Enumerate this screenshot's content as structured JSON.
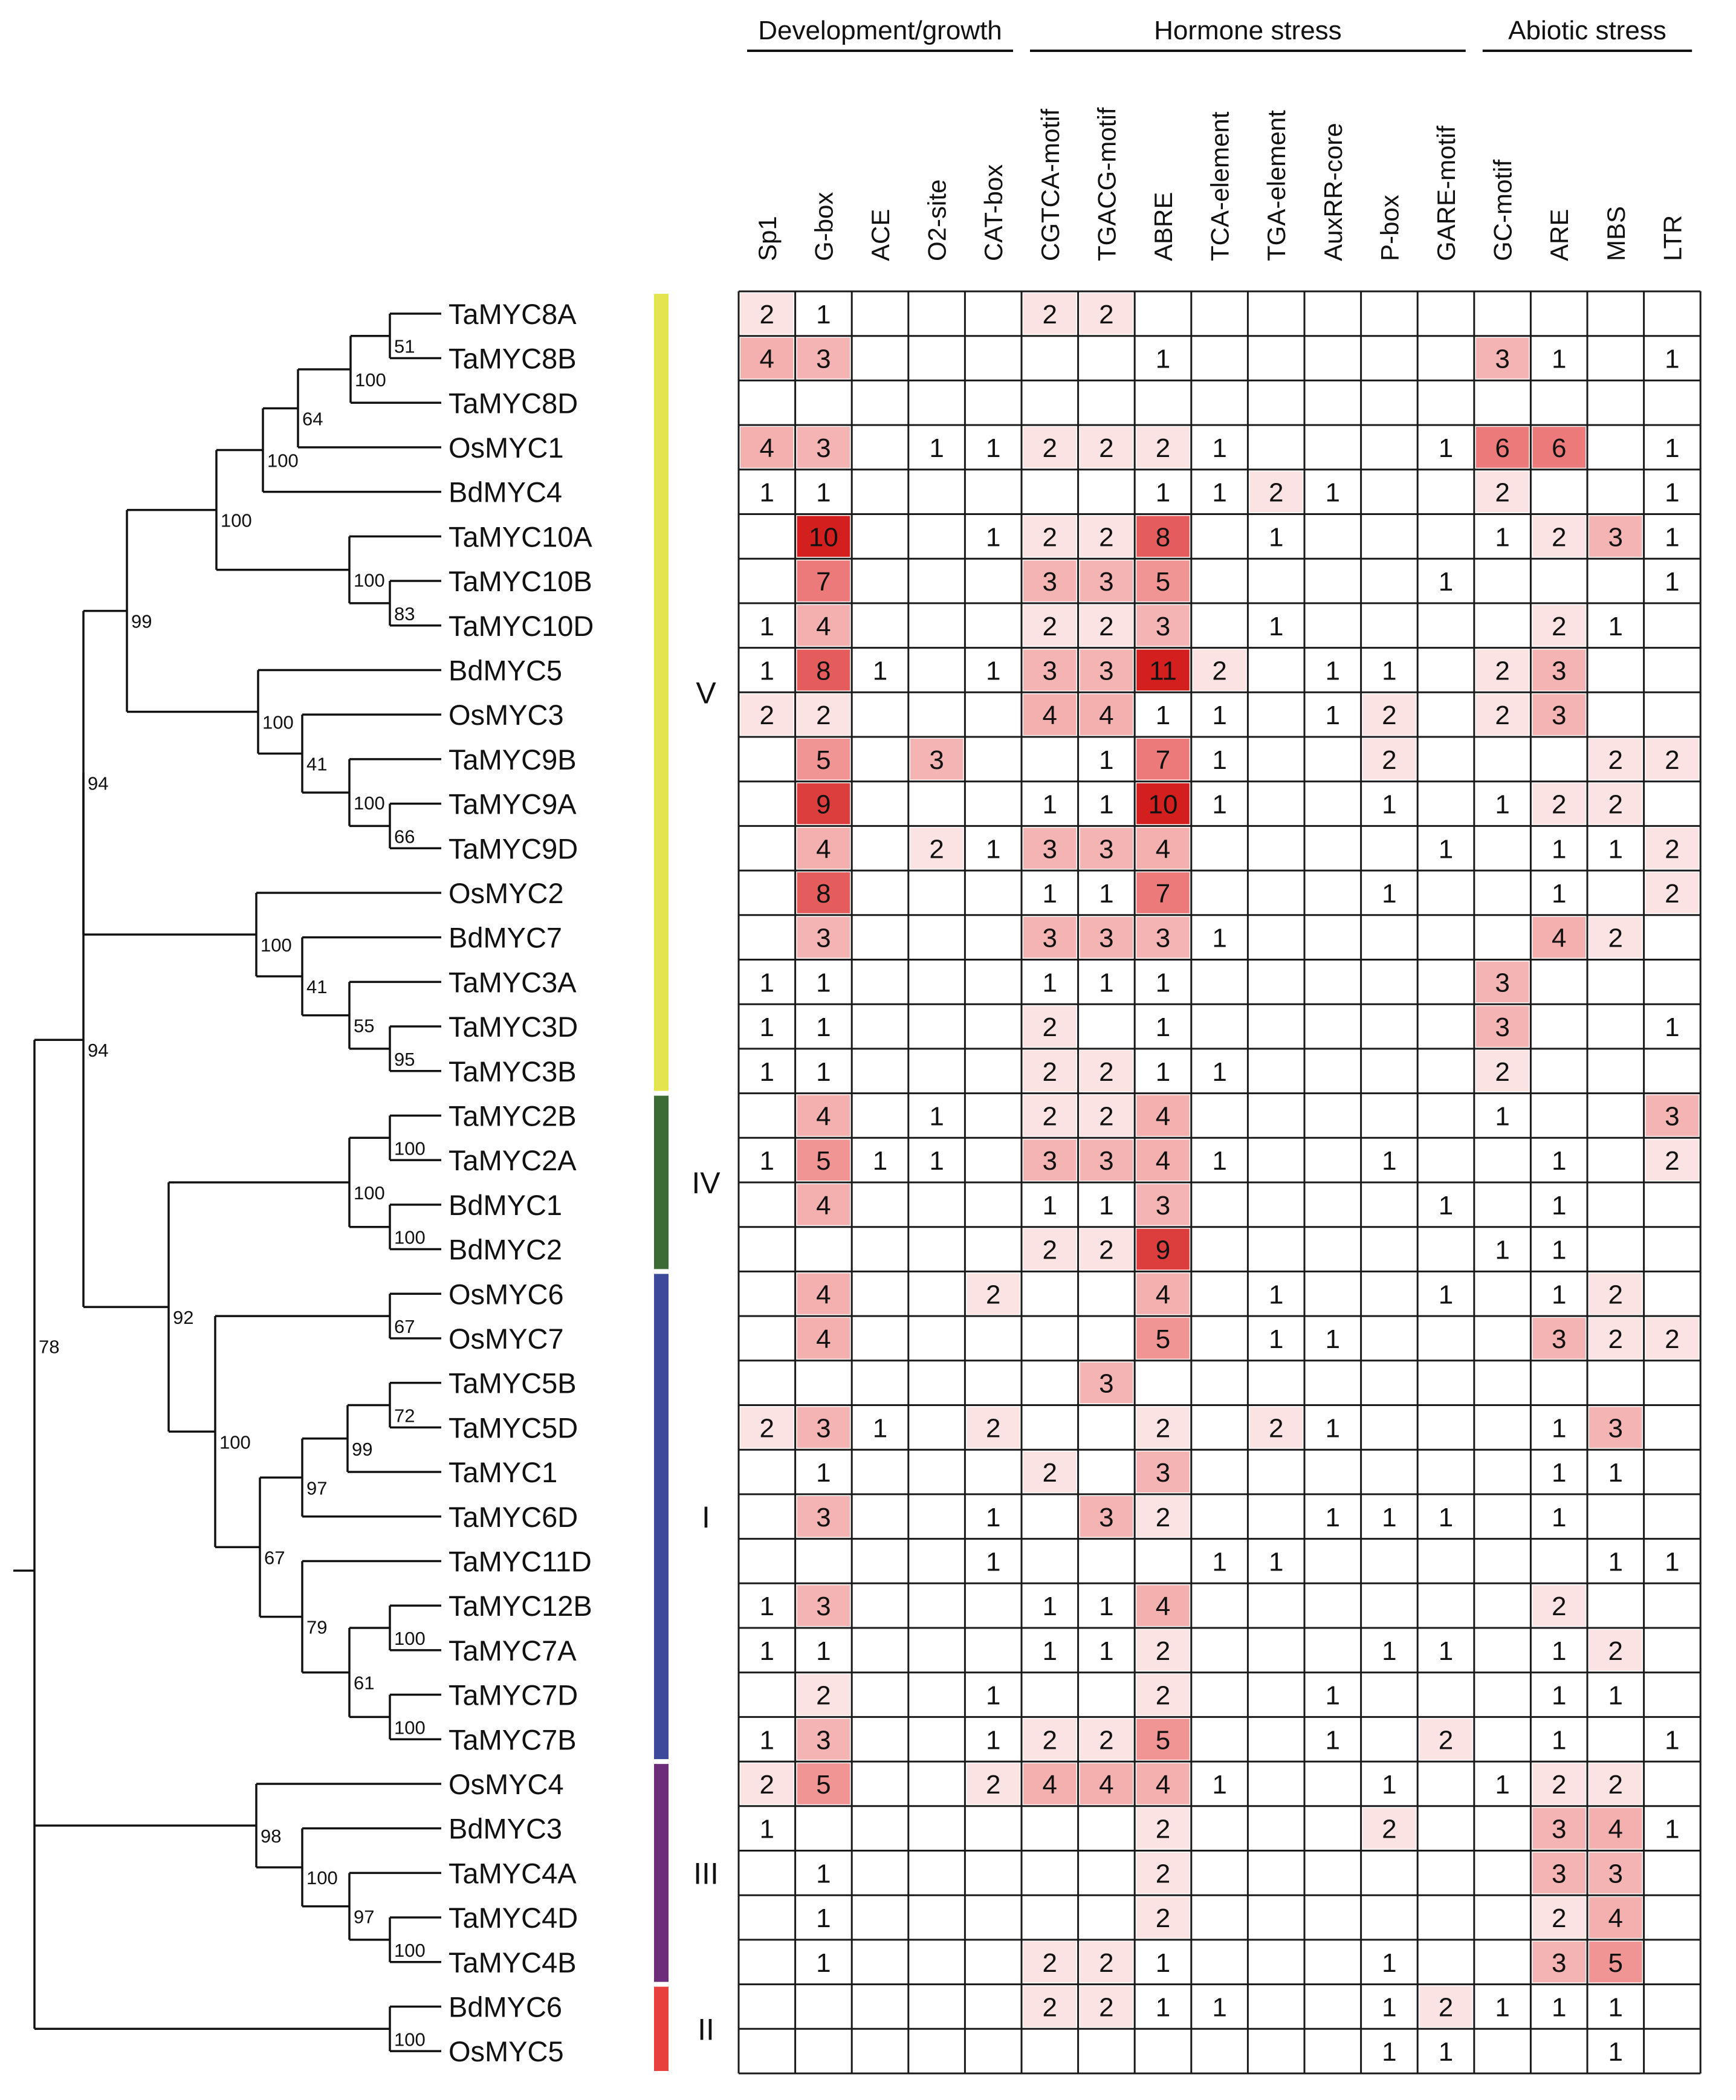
{
  "chart_data": {
    "type": "heatmap",
    "title": "",
    "categories_header": [
      {
        "label": "Development/growth",
        "from": 0,
        "to": 4
      },
      {
        "label": "Hormone stress",
        "from": 5,
        "to": 12
      },
      {
        "label": "Abiotic stress",
        "from": 13,
        "to": 16
      }
    ],
    "columns": [
      "Sp1",
      "G-box",
      "ACE",
      "O2-site",
      "CAT-box",
      "CGTCA-motif",
      "TGACG-motif",
      "ABRE",
      "TCA-element",
      "TGA-element",
      "AuxRR-core",
      "P-box",
      "GARE-motif",
      "GC-motif",
      "ARE",
      "MBS",
      "LTR"
    ],
    "rows": [
      "TaMYC8A",
      "TaMYC8B",
      "TaMYC8D",
      "OsMYC1",
      "BdMYC4",
      "TaMYC10A",
      "TaMYC10B",
      "TaMYC10D",
      "BdMYC5",
      "OsMYC3",
      "TaMYC9B",
      "TaMYC9A",
      "TaMYC9D",
      "OsMYC2",
      "BdMYC7",
      "TaMYC3A",
      "TaMYC3D",
      "TaMYC3B",
      "TaMYC2B",
      "TaMYC2A",
      "BdMYC1",
      "BdMYC2",
      "OsMYC6",
      "OsMYC7",
      "TaMYC5B",
      "TaMYC5D",
      "TaMYC1",
      "TaMYC6D",
      "TaMYC11D",
      "TaMYC12B",
      "TaMYC7A",
      "TaMYC7D",
      "TaMYC7B",
      "OsMYC4",
      "BdMYC3",
      "TaMYC4A",
      "TaMYC4D",
      "TaMYC4B",
      "BdMYC6",
      "OsMYC5"
    ],
    "values": [
      [
        2,
        1,
        0,
        0,
        0,
        2,
        2,
        0,
        0,
        0,
        0,
        0,
        0,
        0,
        0,
        0,
        0
      ],
      [
        4,
        3,
        0,
        0,
        0,
        0,
        0,
        1,
        0,
        0,
        0,
        0,
        0,
        3,
        1,
        0,
        1
      ],
      [
        0,
        0,
        0,
        0,
        0,
        0,
        0,
        0,
        0,
        0,
        0,
        0,
        0,
        0,
        0,
        0,
        0
      ],
      [
        4,
        3,
        0,
        1,
        1,
        2,
        2,
        2,
        1,
        0,
        0,
        0,
        1,
        6,
        6,
        0,
        1
      ],
      [
        1,
        1,
        0,
        0,
        0,
        0,
        0,
        1,
        1,
        2,
        1,
        0,
        0,
        2,
        0,
        0,
        1
      ],
      [
        0,
        10,
        0,
        0,
        1,
        2,
        2,
        8,
        0,
        1,
        0,
        0,
        0,
        1,
        2,
        3,
        1
      ],
      [
        0,
        7,
        0,
        0,
        0,
        3,
        3,
        5,
        0,
        0,
        0,
        0,
        1,
        0,
        0,
        0,
        1
      ],
      [
        1,
        4,
        0,
        0,
        0,
        2,
        2,
        3,
        0,
        1,
        0,
        0,
        0,
        0,
        2,
        1,
        0
      ],
      [
        1,
        8,
        1,
        0,
        1,
        3,
        3,
        11,
        2,
        0,
        1,
        1,
        0,
        2,
        3,
        0,
        0
      ],
      [
        2,
        2,
        0,
        0,
        0,
        4,
        4,
        1,
        1,
        0,
        1,
        2,
        0,
        2,
        3,
        0,
        0
      ],
      [
        0,
        5,
        0,
        3,
        0,
        0,
        1,
        7,
        1,
        0,
        0,
        2,
        0,
        0,
        0,
        2,
        2
      ],
      [
        0,
        9,
        0,
        0,
        0,
        1,
        1,
        10,
        1,
        0,
        0,
        1,
        0,
        1,
        2,
        2,
        0
      ],
      [
        0,
        4,
        0,
        2,
        1,
        3,
        3,
        4,
        0,
        0,
        0,
        0,
        1,
        0,
        1,
        1,
        2
      ],
      [
        0,
        8,
        0,
        0,
        0,
        1,
        1,
        7,
        0,
        0,
        0,
        1,
        0,
        0,
        1,
        0,
        2
      ],
      [
        0,
        3,
        0,
        0,
        0,
        3,
        3,
        3,
        1,
        0,
        0,
        0,
        0,
        0,
        4,
        2,
        0
      ],
      [
        1,
        1,
        0,
        0,
        0,
        1,
        1,
        1,
        0,
        0,
        0,
        0,
        0,
        3,
        0,
        0,
        0
      ],
      [
        1,
        1,
        0,
        0,
        0,
        2,
        0,
        1,
        0,
        0,
        0,
        0,
        0,
        3,
        0,
        0,
        1
      ],
      [
        1,
        1,
        0,
        0,
        0,
        2,
        2,
        1,
        1,
        0,
        0,
        0,
        0,
        2,
        0,
        0,
        0
      ],
      [
        0,
        4,
        0,
        1,
        0,
        2,
        2,
        4,
        0,
        0,
        0,
        0,
        0,
        1,
        0,
        0,
        3
      ],
      [
        1,
        5,
        1,
        1,
        0,
        3,
        3,
        4,
        1,
        0,
        0,
        1,
        0,
        0,
        1,
        0,
        2
      ],
      [
        0,
        4,
        0,
        0,
        0,
        1,
        1,
        3,
        0,
        0,
        0,
        0,
        1,
        0,
        1,
        0,
        0
      ],
      [
        0,
        0,
        0,
        0,
        0,
        2,
        2,
        9,
        0,
        0,
        0,
        0,
        0,
        1,
        1,
        0,
        0
      ],
      [
        0,
        4,
        0,
        0,
        2,
        0,
        0,
        4,
        0,
        1,
        0,
        0,
        1,
        0,
        1,
        2,
        0
      ],
      [
        0,
        4,
        0,
        0,
        0,
        0,
        0,
        5,
        0,
        1,
        1,
        0,
        0,
        0,
        3,
        2,
        2
      ],
      [
        0,
        0,
        0,
        0,
        0,
        0,
        3,
        0,
        0,
        0,
        0,
        0,
        0,
        0,
        0,
        0,
        0
      ],
      [
        2,
        3,
        1,
        0,
        2,
        0,
        0,
        2,
        0,
        2,
        1,
        0,
        0,
        0,
        1,
        3,
        0
      ],
      [
        0,
        1,
        0,
        0,
        0,
        2,
        0,
        3,
        0,
        0,
        0,
        0,
        0,
        0,
        1,
        1,
        0
      ],
      [
        0,
        3,
        0,
        0,
        1,
        0,
        3,
        2,
        0,
        0,
        1,
        1,
        1,
        0,
        1,
        0,
        0
      ],
      [
        0,
        0,
        0,
        0,
        1,
        0,
        0,
        0,
        1,
        1,
        0,
        0,
        0,
        0,
        0,
        1,
        1
      ],
      [
        1,
        3,
        0,
        0,
        0,
        1,
        1,
        4,
        0,
        0,
        0,
        0,
        0,
        0,
        2,
        0,
        0
      ],
      [
        1,
        1,
        0,
        0,
        0,
        1,
        1,
        2,
        0,
        0,
        0,
        1,
        1,
        0,
        1,
        2,
        0
      ],
      [
        0,
        2,
        0,
        0,
        1,
        0,
        0,
        2,
        0,
        0,
        1,
        0,
        0,
        0,
        1,
        1,
        0
      ],
      [
        1,
        3,
        0,
        0,
        1,
        2,
        2,
        5,
        0,
        0,
        1,
        0,
        2,
        0,
        1,
        0,
        1
      ],
      [
        2,
        5,
        0,
        0,
        2,
        4,
        4,
        4,
        1,
        0,
        0,
        1,
        0,
        1,
        2,
        2,
        0
      ],
      [
        1,
        0,
        0,
        0,
        0,
        0,
        0,
        2,
        0,
        0,
        0,
        2,
        0,
        0,
        3,
        4,
        1
      ],
      [
        0,
        1,
        0,
        0,
        0,
        0,
        0,
        2,
        0,
        0,
        0,
        0,
        0,
        0,
        3,
        3,
        0
      ],
      [
        0,
        1,
        0,
        0,
        0,
        0,
        0,
        2,
        0,
        0,
        0,
        0,
        0,
        0,
        2,
        4,
        0
      ],
      [
        0,
        1,
        0,
        0,
        0,
        2,
        2,
        1,
        0,
        0,
        0,
        1,
        0,
        0,
        3,
        5,
        0
      ],
      [
        0,
        0,
        0,
        0,
        0,
        2,
        2,
        1,
        1,
        0,
        0,
        1,
        2,
        1,
        1,
        1,
        0
      ],
      [
        0,
        0,
        0,
        0,
        0,
        0,
        0,
        0,
        0,
        0,
        0,
        1,
        1,
        0,
        0,
        1,
        0
      ]
    ],
    "color_scale": {
      "low": "#fbe3e3",
      "mid": "#ec7a7a",
      "high": "#d41f1f",
      "one": "#ffffff"
    },
    "clades": [
      {
        "label": "V",
        "from": 0,
        "to": 17,
        "color": "#e4e44e"
      },
      {
        "label": "IV",
        "from": 18,
        "to": 21,
        "color": "#3d6b35"
      },
      {
        "label": "I",
        "from": 22,
        "to": 32,
        "color": "#3d4a9c"
      },
      {
        "label": "III",
        "from": 33,
        "to": 37,
        "color": "#6e2d7a"
      },
      {
        "label": "II",
        "from": 38,
        "to": 39,
        "color": "#e8403c"
      }
    ],
    "tree": {
      "bootstraps": [
        "51",
        "100",
        "64",
        "100",
        "100",
        "100",
        "83",
        "99",
        "100",
        "41",
        "100",
        "66",
        "94",
        "100",
        "41",
        "55",
        "95",
        "78",
        "100",
        "100",
        "100",
        "92",
        "67",
        "72",
        "99",
        "97",
        "100",
        "67",
        "79",
        "100",
        "61",
        "100",
        "98",
        "100",
        "97",
        "100",
        "100"
      ]
    }
  }
}
